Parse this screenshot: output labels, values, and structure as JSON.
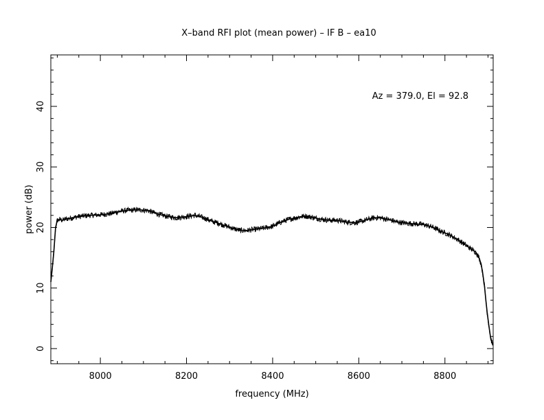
{
  "chart_data": {
    "type": "line",
    "title": "X–band RFI plot (mean power) – IF B – ea10",
    "xlabel": "frequency (MHz)",
    "ylabel": "power (dB)",
    "annotation": "Az = 379.0, El = 92.8",
    "xlim": [
      7885,
      8912
    ],
    "ylim": [
      -2.5,
      48.5
    ],
    "x_ticks": [
      8000,
      8200,
      8400,
      8600,
      8800
    ],
    "y_ticks": [
      0,
      10,
      20,
      30,
      40
    ],
    "x_tick_labels": [
      "8000",
      "8200",
      "8400",
      "8600",
      "8800"
    ],
    "y_tick_labels": [
      "0",
      "10",
      "20",
      "30",
      "40"
    ],
    "grid": false,
    "line_color": "#000000",
    "series": [
      {
        "x": [
          7885,
          7888,
          7892,
          7896,
          7900,
          7906,
          7912,
          7920,
          7935,
          7950,
          7975,
          8000,
          8025,
          8040,
          8060,
          8080,
          8095,
          8110,
          8130,
          8150,
          8175,
          8200,
          8220,
          8240,
          8260,
          8270,
          8290,
          8310,
          8325,
          8340,
          8360,
          8380,
          8400,
          8420,
          8440,
          8460,
          8475,
          8490,
          8510,
          8530,
          8550,
          8570,
          8590,
          8600,
          8620,
          8635,
          8650,
          8670,
          8690,
          8710,
          8730,
          8750,
          8770,
          8790,
          8810,
          8830,
          8850,
          8862,
          8872,
          8878,
          8884,
          8888,
          8892,
          8895,
          8898,
          8902,
          8906,
          8910,
          8912
        ],
        "y": [
          11,
          13,
          16,
          20,
          21.2,
          21.3,
          21.2,
          21.4,
          21.6,
          21.8,
          22.0,
          22.1,
          22.3,
          22.6,
          22.8,
          22.9,
          22.9,
          22.8,
          22.3,
          21.9,
          21.6,
          21.8,
          22.0,
          21.6,
          21.0,
          20.8,
          20.3,
          19.8,
          19.5,
          19.5,
          19.7,
          19.9,
          20.2,
          20.9,
          21.4,
          21.7,
          21.9,
          21.7,
          21.4,
          21.2,
          21.2,
          20.9,
          20.8,
          20.9,
          21.3,
          21.6,
          21.6,
          21.3,
          20.9,
          20.7,
          20.6,
          20.5,
          20.1,
          19.4,
          18.8,
          18.0,
          17.0,
          16.4,
          15.9,
          15.2,
          14.0,
          12.3,
          10.2,
          8.0,
          6.0,
          3.8,
          1.8,
          0.8,
          0.6
        ]
      }
    ]
  }
}
